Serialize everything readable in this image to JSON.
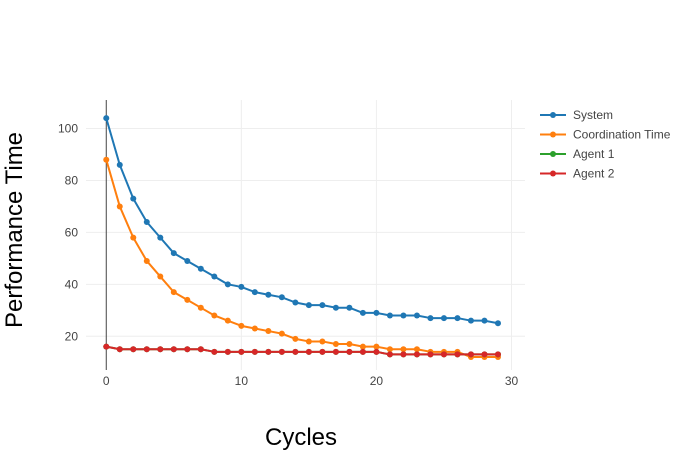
{
  "chart_data": {
    "type": "line",
    "title": "",
    "xlabel": "Cycles",
    "ylabel": "Performance Time",
    "xlim": [
      -1.5,
      31
    ],
    "ylim": [
      7,
      111
    ],
    "x_ticks": [
      0,
      10,
      20,
      30
    ],
    "y_ticks": [
      20,
      40,
      60,
      80,
      100
    ],
    "grid": true,
    "legend_position": "top-right outside",
    "x": [
      0,
      1,
      2,
      3,
      4,
      5,
      6,
      7,
      8,
      9,
      10,
      11,
      12,
      13,
      14,
      15,
      16,
      17,
      18,
      19,
      20,
      21,
      22,
      23,
      24,
      25,
      26,
      27,
      28,
      29
    ],
    "series": [
      {
        "name": "System",
        "color": "#1f77b4",
        "values": [
          104,
          86,
          73,
          64,
          58,
          52,
          49,
          46,
          43,
          40,
          39,
          37,
          36,
          35,
          33,
          32,
          32,
          31,
          31,
          29,
          29,
          28,
          28,
          28,
          27,
          27,
          27,
          26,
          26,
          25
        ]
      },
      {
        "name": "Coordination Time",
        "color": "#ff7f0e",
        "values": [
          88,
          70,
          58,
          49,
          43,
          37,
          34,
          31,
          28,
          26,
          24,
          23,
          22,
          21,
          19,
          18,
          18,
          17,
          17,
          16,
          16,
          15,
          15,
          15,
          14,
          14,
          14,
          12,
          12,
          12
        ]
      },
      {
        "name": "Agent 1",
        "color": "#2ca02c",
        "values": [
          16,
          15,
          15,
          15,
          15,
          15,
          15,
          15,
          14,
          14,
          14,
          14,
          14,
          14,
          14,
          14,
          14,
          14,
          14,
          14,
          14,
          13,
          13,
          13,
          13,
          13,
          13,
          13,
          13,
          13
        ]
      },
      {
        "name": "Agent 2",
        "color": "#d62728",
        "values": [
          16,
          15,
          15,
          15,
          15,
          15,
          15,
          15,
          14,
          14,
          14,
          14,
          14,
          14,
          14,
          14,
          14,
          14,
          14,
          14,
          14,
          13,
          13,
          13,
          13,
          13,
          13,
          13,
          13,
          13
        ]
      }
    ]
  }
}
